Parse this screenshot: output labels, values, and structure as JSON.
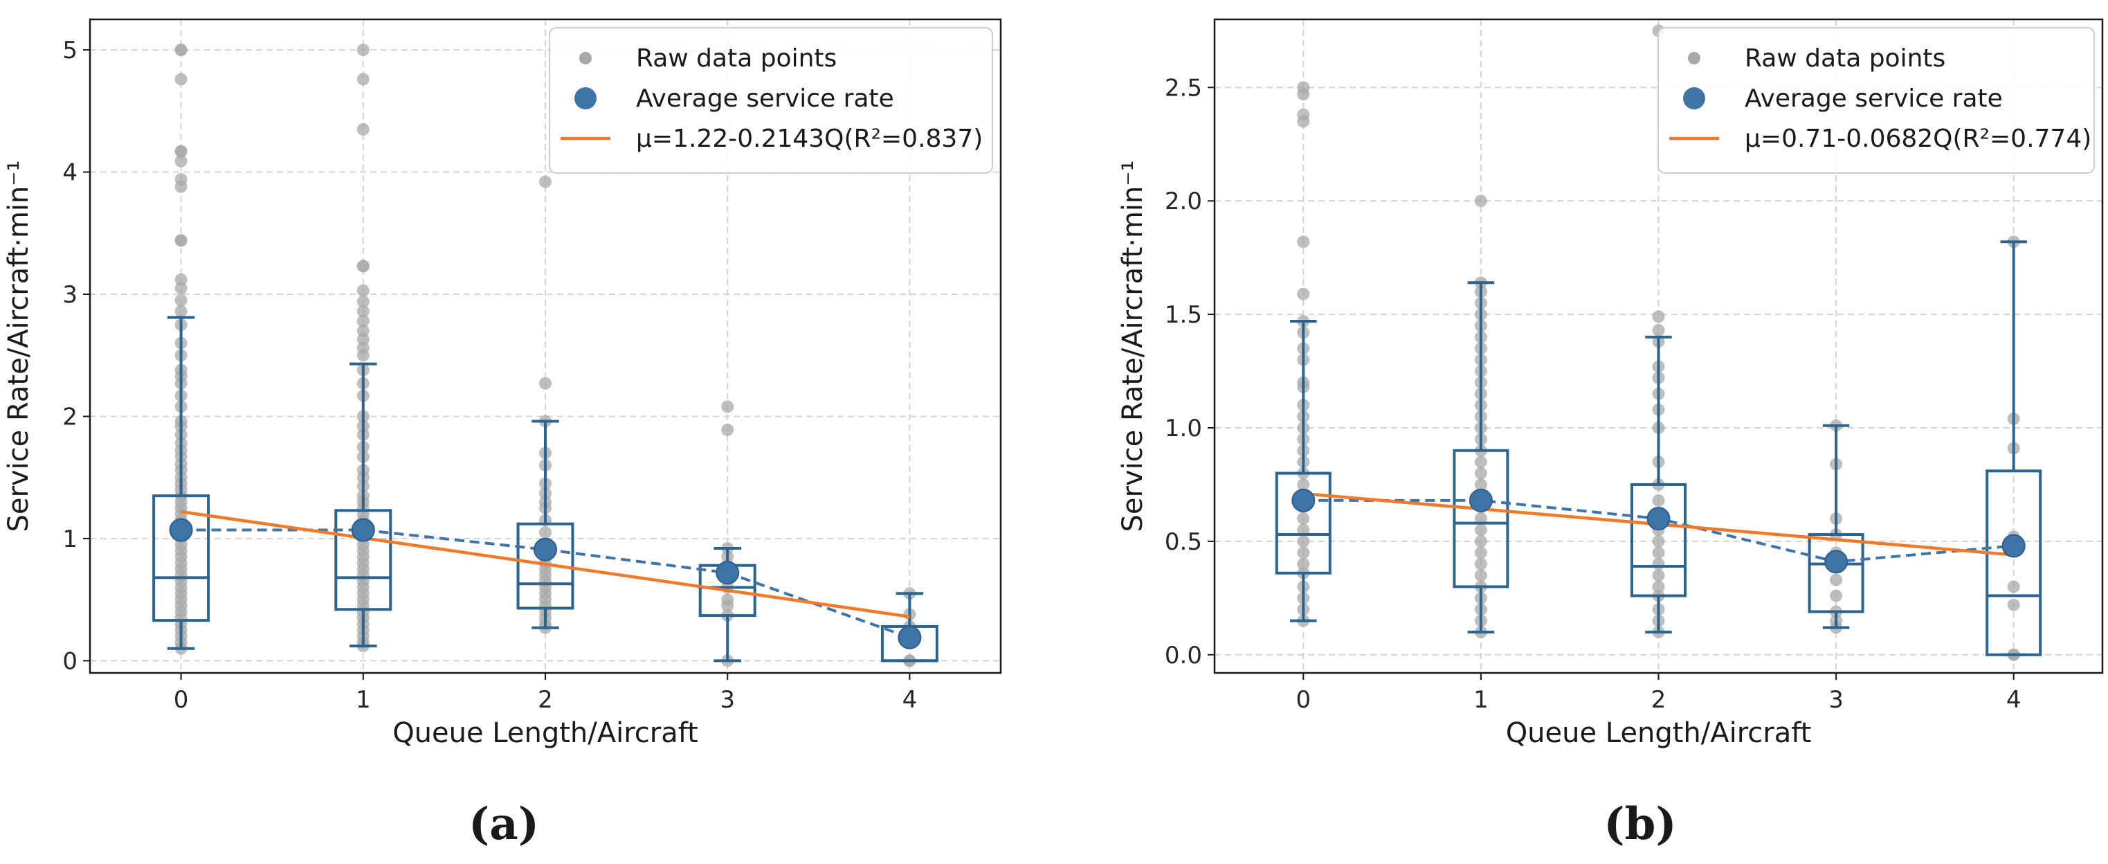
{
  "chart_data": [
    {
      "type": "boxplot-scatter",
      "caption": "(a)",
      "xlabel": "Queue Length/Aircraft",
      "ylabel": "Service Rate/Aircraft·min⁻¹",
      "xlim": [
        -0.5,
        4.5
      ],
      "ylim": [
        -0.1,
        5.25
      ],
      "xticks": [
        0,
        1,
        2,
        3,
        4
      ],
      "xtick_labels": [
        "0",
        "1",
        "2",
        "3",
        "4"
      ],
      "yticks": [
        0,
        1,
        2,
        3,
        4,
        5
      ],
      "ytick_labels": [
        "0",
        "1",
        "2",
        "3",
        "4",
        "5"
      ],
      "grid": true,
      "legend_position": "top-right",
      "legend": [
        "Raw data points",
        "Average service rate",
        "μ=1.22-0.2143Q(R²=0.837)"
      ],
      "colors": {
        "raw": "#a8a8a8",
        "avg": "#3f74a8",
        "box": "#2a6592",
        "fit": "#f07a2a",
        "grid": "#d4d4d4"
      },
      "boxes": [
        {
          "x": 0,
          "q1": 0.33,
          "median": 0.68,
          "q3": 1.35,
          "whisker_low": 0.1,
          "whisker_high": 2.81
        },
        {
          "x": 1,
          "q1": 0.42,
          "median": 0.68,
          "q3": 1.23,
          "whisker_low": 0.12,
          "whisker_high": 2.43
        },
        {
          "x": 2,
          "q1": 0.43,
          "median": 0.63,
          "q3": 1.12,
          "whisker_low": 0.27,
          "whisker_high": 1.96
        },
        {
          "x": 3,
          "q1": 0.37,
          "median": 0.6,
          "q3": 0.78,
          "whisker_low": 0.0,
          "whisker_high": 0.92
        },
        {
          "x": 4,
          "q1": 0.0,
          "median": 0.0,
          "q3": 0.28,
          "whisker_low": 0.0,
          "whisker_high": 0.55
        }
      ],
      "averages": {
        "x": [
          0,
          1,
          2,
          3,
          4
        ],
        "y": [
          1.07,
          1.07,
          0.91,
          0.72,
          0.19
        ]
      },
      "fit_line": {
        "x": [
          0,
          4
        ],
        "y": [
          1.22,
          0.36
        ]
      },
      "raw_points": [
        {
          "x": 0,
          "y": [
            5.0,
            5.0,
            4.76,
            4.17,
            4.17,
            4.09,
            3.94,
            3.88,
            3.44,
            3.44,
            3.12,
            3.05,
            2.95,
            2.86,
            2.75,
            2.6,
            2.5,
            2.38,
            2.33,
            2.27,
            2.17,
            2.08,
            1.96,
            1.92,
            1.85,
            1.78,
            1.72,
            1.67,
            1.61,
            1.56,
            1.5,
            1.45,
            1.4,
            1.35,
            1.3,
            1.25,
            1.2,
            1.15,
            1.1,
            1.05,
            1.0,
            0.95,
            0.9,
            0.85,
            0.8,
            0.75,
            0.7,
            0.65,
            0.6,
            0.55,
            0.5,
            0.45,
            0.4,
            0.35,
            0.3,
            0.25,
            0.2,
            0.15,
            0.1
          ]
        },
        {
          "x": 1,
          "y": [
            5.0,
            4.76,
            4.35,
            3.23,
            3.23,
            3.03,
            2.94,
            2.86,
            2.78,
            2.7,
            2.63,
            2.56,
            2.5,
            2.38,
            2.27,
            2.17,
            2.0,
            1.92,
            1.85,
            1.75,
            1.67,
            1.56,
            1.5,
            1.43,
            1.35,
            1.3,
            1.25,
            1.2,
            1.15,
            1.1,
            1.05,
            1.0,
            0.95,
            0.9,
            0.85,
            0.8,
            0.75,
            0.7,
            0.65,
            0.6,
            0.55,
            0.5,
            0.45,
            0.4,
            0.35,
            0.3,
            0.25,
            0.2,
            0.15,
            0.12
          ]
        },
        {
          "x": 2,
          "y": [
            3.92,
            2.27,
            1.96,
            1.7,
            1.6,
            1.45,
            1.37,
            1.3,
            1.25,
            1.15,
            1.05,
            0.95,
            0.9,
            0.85,
            0.8,
            0.75,
            0.7,
            0.65,
            0.6,
            0.55,
            0.5,
            0.45,
            0.4,
            0.35,
            0.3,
            0.27
          ]
        },
        {
          "x": 3,
          "y": [
            2.08,
            1.89,
            0.92,
            0.85,
            0.78,
            0.7,
            0.6,
            0.5,
            0.45,
            0.37,
            0.0
          ]
        },
        {
          "x": 4,
          "y": [
            0.55,
            0.38,
            0.28,
            0.0,
            0.0
          ]
        }
      ]
    },
    {
      "type": "boxplot-scatter",
      "caption": "(b)",
      "xlabel": "Queue Length/Aircraft",
      "ylabel": "Service Rate/Aircraft·min⁻¹",
      "xlim": [
        -0.5,
        4.5
      ],
      "ylim": [
        -0.08,
        2.8
      ],
      "xticks": [
        0,
        1,
        2,
        3,
        4
      ],
      "xtick_labels": [
        "0",
        "1",
        "2",
        "3",
        "4"
      ],
      "yticks": [
        0.0,
        0.5,
        1.0,
        1.5,
        2.0,
        2.5
      ],
      "ytick_labels": [
        "0.0",
        "0.5",
        "1.0",
        "1.5",
        "2.0",
        "2.5"
      ],
      "grid": true,
      "legend_position": "top-right",
      "legend": [
        "Raw data points",
        "Average service rate",
        "μ=0.71-0.0682Q(R²=0.774)"
      ],
      "colors": {
        "raw": "#a8a8a8",
        "avg": "#3f74a8",
        "box": "#2a6592",
        "fit": "#f07a2a",
        "grid": "#d4d4d4"
      },
      "boxes": [
        {
          "x": 0,
          "q1": 0.36,
          "median": 0.53,
          "q3": 0.8,
          "whisker_low": 0.15,
          "whisker_high": 1.47
        },
        {
          "x": 1,
          "q1": 0.3,
          "median": 0.58,
          "q3": 0.9,
          "whisker_low": 0.1,
          "whisker_high": 1.64
        },
        {
          "x": 2,
          "q1": 0.26,
          "median": 0.39,
          "q3": 0.75,
          "whisker_low": 0.1,
          "whisker_high": 1.4
        },
        {
          "x": 3,
          "q1": 0.19,
          "median": 0.4,
          "q3": 0.53,
          "whisker_low": 0.12,
          "whisker_high": 1.01
        },
        {
          "x": 4,
          "q1": 0.0,
          "median": 0.26,
          "q3": 0.81,
          "whisker_low": 0.0,
          "whisker_high": 1.82
        }
      ],
      "averages": {
        "x": [
          0,
          1,
          2,
          3,
          4
        ],
        "y": [
          0.68,
          0.68,
          0.6,
          0.41,
          0.48
        ]
      },
      "fit_line": {
        "x": [
          0,
          4
        ],
        "y": [
          0.71,
          0.44
        ]
      },
      "raw_points": [
        {
          "x": 0,
          "y": [
            2.5,
            2.47,
            2.38,
            2.35,
            1.82,
            1.59,
            1.47,
            1.42,
            1.35,
            1.3,
            1.2,
            1.18,
            1.1,
            1.05,
            1.0,
            0.95,
            0.9,
            0.85,
            0.8,
            0.75,
            0.7,
            0.65,
            0.6,
            0.55,
            0.5,
            0.45,
            0.4,
            0.36,
            0.3,
            0.25,
            0.2,
            0.15
          ]
        },
        {
          "x": 1,
          "y": [
            2.0,
            1.64,
            1.6,
            1.55,
            1.5,
            1.45,
            1.4,
            1.35,
            1.3,
            1.25,
            1.2,
            1.15,
            1.1,
            1.05,
            1.0,
            0.95,
            0.9,
            0.85,
            0.8,
            0.75,
            0.7,
            0.65,
            0.6,
            0.55,
            0.5,
            0.45,
            0.4,
            0.35,
            0.3,
            0.25,
            0.2,
            0.15,
            0.1
          ]
        },
        {
          "x": 2,
          "y": [
            2.75,
            1.49,
            1.43,
            1.38,
            1.27,
            1.22,
            1.15,
            1.08,
            1.0,
            0.85,
            0.75,
            0.68,
            0.6,
            0.55,
            0.5,
            0.45,
            0.4,
            0.35,
            0.3,
            0.26,
            0.2,
            0.15,
            0.1
          ]
        },
        {
          "x": 3,
          "y": [
            1.01,
            0.84,
            0.6,
            0.53,
            0.45,
            0.4,
            0.33,
            0.26,
            0.19,
            0.15,
            0.12
          ]
        },
        {
          "x": 4,
          "y": [
            1.82,
            1.04,
            0.91,
            0.52,
            0.46,
            0.3,
            0.22,
            0.0,
            0.0
          ]
        }
      ]
    }
  ]
}
